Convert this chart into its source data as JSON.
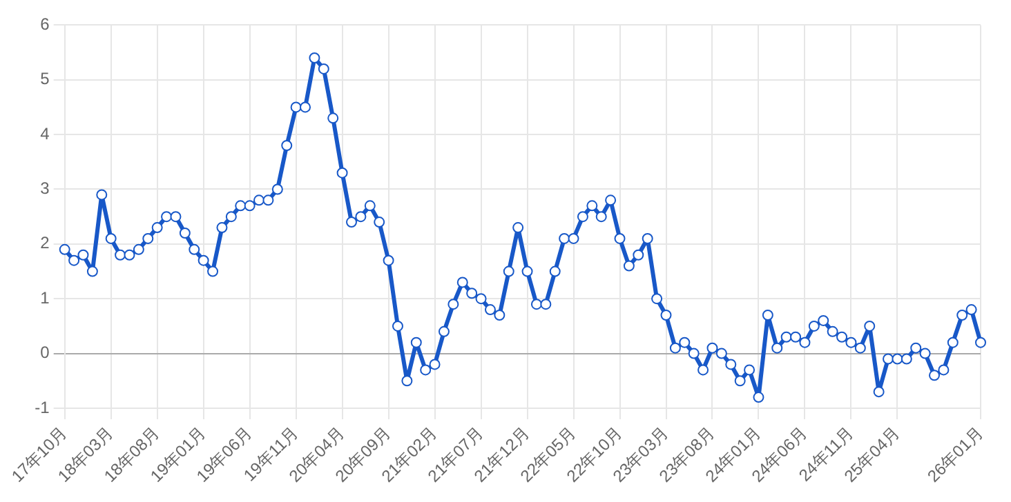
{
  "chart_data": {
    "type": "line",
    "categories": [
      "17年10月",
      null,
      null,
      null,
      null,
      "18年03月",
      null,
      null,
      null,
      null,
      "18年08月",
      null,
      null,
      null,
      null,
      "19年01月",
      null,
      null,
      null,
      null,
      "19年06月",
      null,
      null,
      null,
      null,
      "19年11月",
      null,
      null,
      null,
      null,
      "20年04月",
      null,
      null,
      null,
      null,
      "20年09月",
      null,
      null,
      null,
      null,
      "21年02月",
      null,
      null,
      null,
      null,
      "21年07月",
      null,
      null,
      null,
      null,
      "21年12月",
      null,
      null,
      null,
      null,
      "22年05月",
      null,
      null,
      null,
      null,
      "22年10月",
      null,
      null,
      null,
      null,
      "23年03月",
      null,
      null,
      null,
      null,
      "23年08月",
      null,
      null,
      null,
      null,
      "24年01月",
      null,
      null,
      null,
      null,
      "24年06月",
      null,
      null,
      null,
      null,
      "24年11月",
      null,
      null,
      null,
      null,
      "25年04月",
      null,
      null,
      null,
      null,
      null,
      null,
      null,
      null,
      "26年01月"
    ],
    "series": [
      {
        "color": "#1858c8",
        "values": [
          1.9,
          1.7,
          1.8,
          1.5,
          2.9,
          2.1,
          1.8,
          1.8,
          1.9,
          2.1,
          2.3,
          2.5,
          2.5,
          2.2,
          1.9,
          1.7,
          1.5,
          2.3,
          2.5,
          2.7,
          2.7,
          2.8,
          2.8,
          3.0,
          3.8,
          4.5,
          4.5,
          5.4,
          5.2,
          4.3,
          3.3,
          2.4,
          2.5,
          2.7,
          2.4,
          1.7,
          0.5,
          -0.5,
          0.2,
          -0.3,
          -0.2,
          0.4,
          0.9,
          1.3,
          1.1,
          1.0,
          0.8,
          0.7,
          1.5,
          2.3,
          1.5,
          0.9,
          0.9,
          1.5,
          2.1,
          2.1,
          2.5,
          2.7,
          2.5,
          2.8,
          2.1,
          1.6,
          1.8,
          2.1,
          1.0,
          0.7,
          0.1,
          0.2,
          0.0,
          -0.3,
          0.1,
          0.0,
          -0.2,
          -0.5,
          -0.3,
          -0.8,
          0.7,
          0.1,
          0.3,
          0.3,
          0.2,
          0.5,
          0.6,
          0.4,
          0.3,
          0.2,
          0.1,
          0.5,
          -0.7,
          -0.1,
          -0.1,
          -0.1,
          0.1,
          0.0,
          -0.4,
          -0.3,
          0.2,
          0.7,
          0.8,
          0.2
        ]
      }
    ],
    "ylim": [
      -1,
      6
    ],
    "yticks": [
      -1,
      0,
      1,
      2,
      3,
      4,
      5,
      6
    ],
    "grid": true,
    "marker": "circle",
    "line_style": "solid",
    "legend": false
  }
}
